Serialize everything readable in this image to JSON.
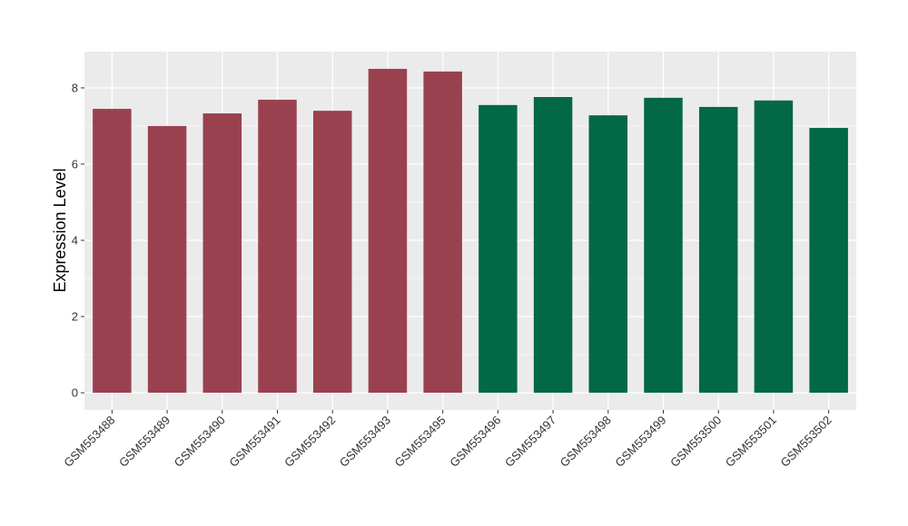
{
  "chart_data": {
    "type": "bar",
    "title": "",
    "xlabel": "",
    "ylabel": "Expression Level",
    "ylim": [
      -0.45,
      8.95
    ],
    "yticks": [
      0,
      2,
      4,
      6,
      8
    ],
    "grid": true,
    "legend": "none",
    "categories": [
      "GSM553488",
      "GSM553489",
      "GSM553490",
      "GSM553491",
      "GSM553492",
      "GSM553493",
      "GSM553495",
      "GSM553496",
      "GSM553497",
      "GSM553498",
      "GSM553499",
      "GSM553500",
      "GSM553501",
      "GSM553502"
    ],
    "values": [
      7.45,
      7.0,
      7.33,
      7.69,
      7.4,
      8.5,
      8.43,
      7.55,
      7.76,
      7.28,
      7.74,
      7.5,
      7.67,
      6.95
    ],
    "bar_colors": [
      "#9a4150",
      "#9a4150",
      "#9a4150",
      "#9a4150",
      "#9a4150",
      "#9a4150",
      "#9a4150",
      "#026846",
      "#026846",
      "#026846",
      "#026846",
      "#026846",
      "#026846",
      "#026846"
    ]
  },
  "colors": {
    "panel_background": "#ebebeb",
    "grid_line": "#ffffff",
    "group_1": "#9a4150",
    "group_2": "#026846"
  }
}
